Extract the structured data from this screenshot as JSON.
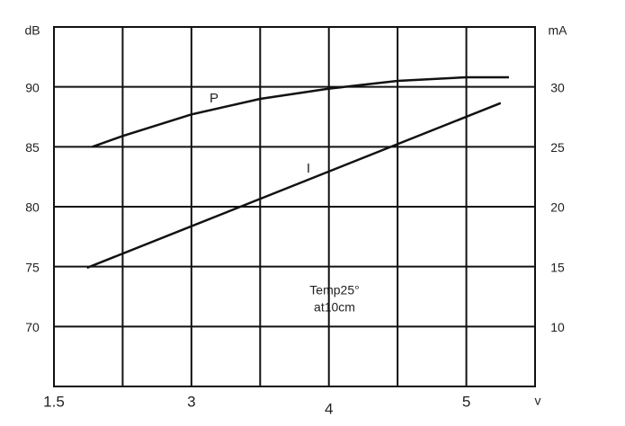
{
  "chart_data": {
    "type": "line",
    "y_unit": "dB",
    "y2_unit": "mA",
    "x_unit": "v",
    "x": [],
    "series": [
      {
        "name": "P",
        "color": "#111111",
        "x": [
          1.92,
          2.25,
          3,
          3.5,
          4,
          4.23,
          4.5,
          5,
          5.31
        ],
        "values": [
          85.0,
          85.9,
          87.7,
          89.0,
          89.85,
          90.15,
          90.5,
          90.8,
          90.8
        ]
      },
      {
        "name": "I",
        "color": "#111111",
        "axis": "y2",
        "x": [
          1.86,
          5.25
        ],
        "values": [
          14.9,
          28.65
        ]
      }
    ],
    "annotations": [
      "Temp25°",
      "at10cm"
    ],
    "xlim": [
      1.5,
      5.5
    ],
    "xticks": [
      1.5,
      3,
      4,
      5
    ],
    "ylim": [
      65,
      95
    ],
    "yticks": [
      70,
      75,
      80,
      85,
      90
    ],
    "y2lim": [
      5,
      35
    ],
    "y2ticks": [
      10,
      15,
      20,
      25,
      30
    ],
    "grid": true
  }
}
